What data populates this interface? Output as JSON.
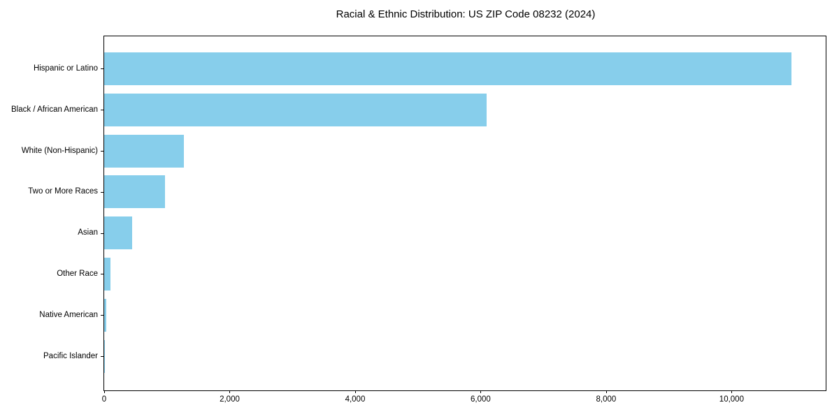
{
  "window": {
    "background_color": "#ffffff"
  },
  "chart_data": {
    "type": "bar",
    "orientation": "horizontal",
    "title": "Racial & Ethnic Distribution: US ZIP Code 08232 (2024)",
    "categories": [
      "Hispanic or Latino",
      "Black / African American",
      "White (Non-Hispanic)",
      "Two or More Races",
      "Asian",
      "Other Race",
      "Native American",
      "Pacific Islander"
    ],
    "values": [
      10950,
      6100,
      1270,
      975,
      450,
      95,
      35,
      5
    ],
    "xlabel": "",
    "ylabel": "",
    "xlim": [
      0,
      11500
    ],
    "x_ticks": [
      0,
      2000,
      4000,
      6000,
      8000,
      10000
    ],
    "x_tick_labels": [
      "0",
      "2,000",
      "4,000",
      "6,000",
      "8,000",
      "10,000"
    ],
    "grid": false,
    "legend": false,
    "bar_color": "#87CEEB",
    "axis_color": "#000000",
    "text_color": "#000000"
  }
}
